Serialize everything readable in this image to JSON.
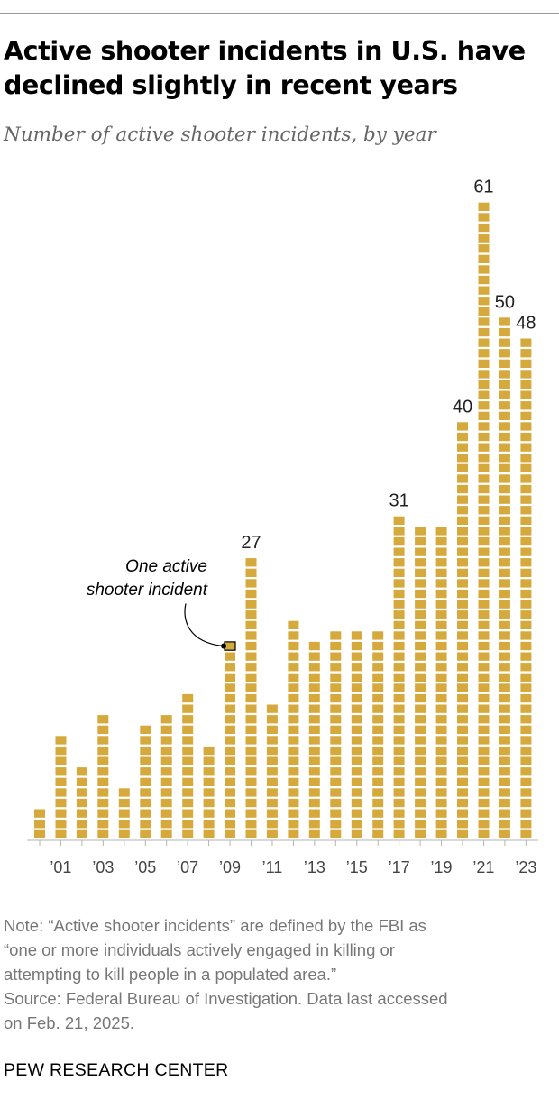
{
  "header": {
    "title": "Active shooter incidents in U.S. have declined slightly in recent years",
    "subtitle": "Number of active shooter incidents, by year"
  },
  "chart_data": {
    "type": "bar",
    "title": "Active shooter incidents in U.S. have declined slightly in recent years",
    "subtitle": "Number of active shooter incidents, by year",
    "categories": [
      "2000",
      "2001",
      "2002",
      "2003",
      "2004",
      "2005",
      "2006",
      "2007",
      "2008",
      "2009",
      "2010",
      "2011",
      "2012",
      "2013",
      "2014",
      "2015",
      "2016",
      "2017",
      "2018",
      "2019",
      "2020",
      "2021",
      "2022",
      "2023"
    ],
    "values": [
      3,
      10,
      7,
      12,
      5,
      11,
      12,
      14,
      9,
      19,
      27,
      13,
      21,
      19,
      20,
      20,
      20,
      31,
      30,
      30,
      40,
      61,
      50,
      48
    ],
    "tick_labels": [
      "’01",
      "’03",
      "’05",
      "’07",
      "’09",
      "’11",
      "’13",
      "’15",
      "’17",
      "’19",
      "’21",
      "’23"
    ],
    "data_labels": [
      {
        "category": "2010",
        "text": "27"
      },
      {
        "category": "2017",
        "text": "31"
      },
      {
        "category": "2020",
        "text": "40"
      },
      {
        "category": "2021",
        "text": "61"
      },
      {
        "category": "2022",
        "text": "50"
      },
      {
        "category": "2023",
        "text": "48"
      }
    ],
    "annotation": {
      "category": "2009",
      "lines": [
        "One active",
        "shooter incident"
      ]
    },
    "unit_square_meaning": "One active shooter incident",
    "colors": {
      "bar": "#d6a93c",
      "axis": "#b3b3b3",
      "tick_text": "#444444"
    },
    "ylim": [
      0,
      61
    ],
    "grid": false,
    "legend": "none"
  },
  "notes": {
    "note_lines": [
      "Note: “Active shooter incidents” are defined by the FBI as",
      "“one or more individuals actively engaged in killing or",
      "attempting to kill people in a populated area.”"
    ],
    "source_lines": [
      "Source: Federal Bureau of Investigation. Data last accessed",
      "on Feb. 21, 2025."
    ]
  },
  "brand": "PEW RESEARCH CENTER"
}
